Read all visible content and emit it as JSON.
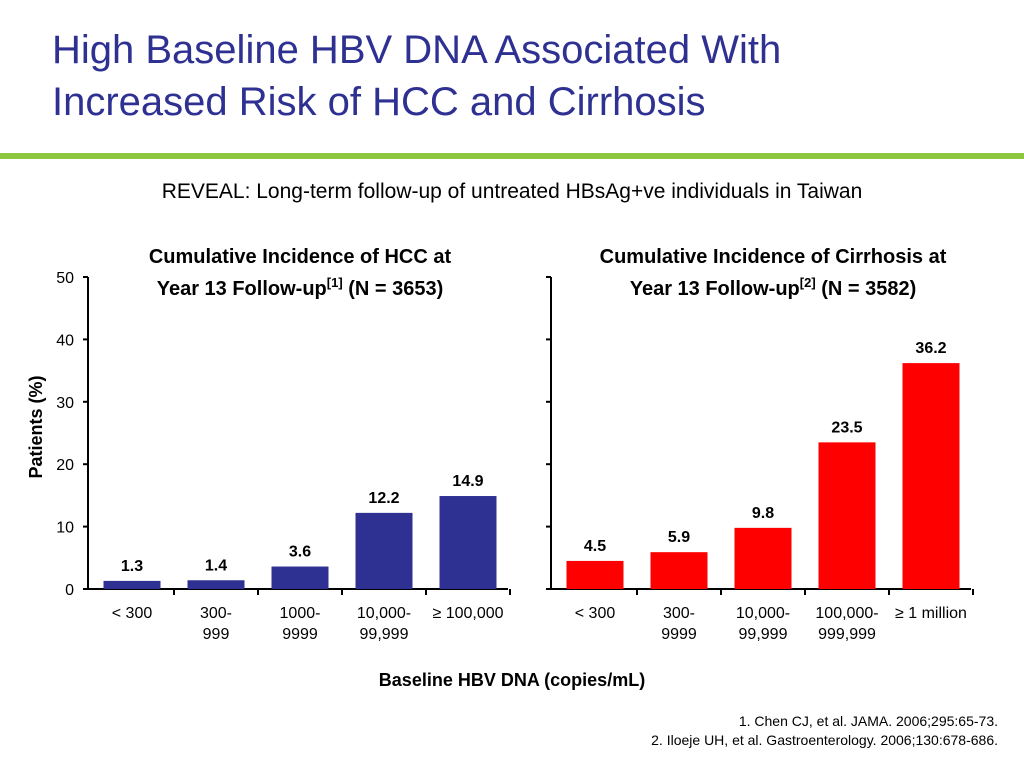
{
  "slide": {
    "title_line1": "High Baseline HBV DNA Associated With",
    "title_line2": "Increased Risk of HCC and Cirrhosis",
    "subtitle": "REVEAL: Long-term follow-up of untreated HBsAg+ve individuals in Taiwan",
    "accent_color": "#8dc63f",
    "title_color": "#2e3192"
  },
  "chart_data": [
    {
      "type": "bar",
      "title_line1": "Cumulative Incidence of HCC at",
      "title_line2_pre": "Year 13 Follow-up",
      "title_ref": "[1]",
      "title_line2_post": " (N = 3653)",
      "categories": [
        [
          "< 300"
        ],
        [
          "300-",
          "999"
        ],
        [
          "1000-",
          "9999"
        ],
        [
          "10,000-",
          "99,999"
        ],
        [
          "≥ 100,000"
        ]
      ],
      "values": [
        1.3,
        1.4,
        3.6,
        12.2,
        14.9
      ],
      "value_labels": [
        "1.3",
        "1.4",
        "3.6",
        "12.2",
        "14.9"
      ],
      "color": "#2e3192",
      "ylabel": "Patients (%)",
      "ylim": [
        0,
        50
      ],
      "yticks": [
        0,
        10,
        20,
        30,
        40,
        50
      ],
      "ytick_labels": [
        "0",
        "10",
        "20",
        "30",
        "40",
        "50"
      ]
    },
    {
      "type": "bar",
      "title_line1": "Cumulative Incidence of Cirrhosis at",
      "title_line2_pre": "Year 13 Follow-up",
      "title_ref": "[2]",
      "title_line2_post": " (N = 3582)",
      "categories": [
        [
          "< 300"
        ],
        [
          "300-",
          "9999"
        ],
        [
          "10,000-",
          "99,999"
        ],
        [
          "100,000-",
          "999,999"
        ],
        [
          "≥ 1 million"
        ]
      ],
      "values": [
        4.5,
        5.9,
        9.8,
        23.5,
        36.2
      ],
      "value_labels": [
        "4.5",
        "5.9",
        "9.8",
        "23.5",
        "36.2"
      ],
      "color": "#ff0000",
      "ylim": [
        0,
        50
      ],
      "yticks": [
        0,
        10,
        20,
        30,
        40,
        50
      ]
    }
  ],
  "shared_xlabel": "Baseline HBV DNA (copies/mL)",
  "references": [
    "1. Chen CJ, et al. JAMA. 2006;295:65-73.",
    "2. Iloeje UH, et al. Gastroenterology. 2006;130:678-686."
  ]
}
